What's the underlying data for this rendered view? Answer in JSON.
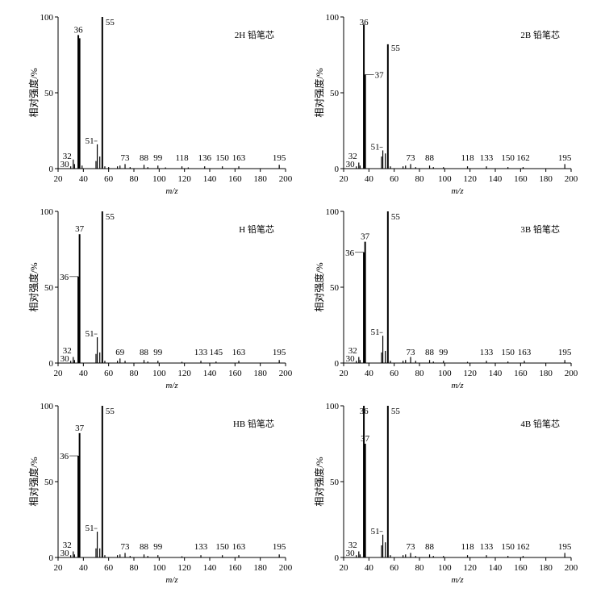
{
  "chart_data": [
    {
      "type": "bar",
      "title": "2H 铅笔芯",
      "xlabel": "m/z",
      "ylabel": "相对强度/%",
      "xlim": [
        20,
        200
      ],
      "ylim": [
        0,
        100
      ],
      "x_ticks": [
        "20",
        "40",
        "60",
        "80",
        "100",
        "120",
        "140",
        "160",
        "180",
        "200"
      ],
      "y_ticks": [
        "0",
        "50",
        "100"
      ],
      "peaks": [
        {
          "x": 30,
          "y": 1.5
        },
        {
          "x": 32,
          "y": 6
        },
        {
          "x": 33,
          "y": 3
        },
        {
          "x": 36,
          "y": 88
        },
        {
          "x": 37,
          "y": 86
        },
        {
          "x": 39,
          "y": 2
        },
        {
          "x": 50,
          "y": 5
        },
        {
          "x": 51,
          "y": 16
        },
        {
          "x": 53,
          "y": 8
        },
        {
          "x": 55,
          "y": 100
        },
        {
          "x": 57,
          "y": 1.5
        },
        {
          "x": 60,
          "y": 1
        },
        {
          "x": 67,
          "y": 1.5
        },
        {
          "x": 69,
          "y": 2
        },
        {
          "x": 73,
          "y": 3
        },
        {
          "x": 77,
          "y": 1
        },
        {
          "x": 88,
          "y": 2.5
        },
        {
          "x": 91,
          "y": 1
        },
        {
          "x": 99,
          "y": 2
        },
        {
          "x": 105,
          "y": 0.8
        },
        {
          "x": 118,
          "y": 1.5
        },
        {
          "x": 123,
          "y": 0.8
        },
        {
          "x": 136,
          "y": 1.5
        },
        {
          "x": 150,
          "y": 1.5
        },
        {
          "x": 163,
          "y": 1.5
        },
        {
          "x": 195,
          "y": 2.5
        }
      ],
      "labels": [
        {
          "text": "30",
          "x": 30,
          "y": 1.5
        },
        {
          "text": "32",
          "x": 32,
          "y": 6
        },
        {
          "text": "36",
          "x": 36,
          "y": 88
        },
        {
          "text": "51",
          "x": 51,
          "y": 16
        },
        {
          "text": "55",
          "x": 55,
          "y": 100
        },
        {
          "text": "73",
          "x": 73,
          "y": 3
        },
        {
          "text": "88",
          "x": 88,
          "y": 2.5
        },
        {
          "text": "99",
          "x": 99,
          "y": 2
        },
        {
          "text": "118",
          "x": 118,
          "y": 1.5
        },
        {
          "text": "136",
          "x": 136,
          "y": 1.5
        },
        {
          "text": "150",
          "x": 150,
          "y": 1.5
        },
        {
          "text": "163",
          "x": 163,
          "y": 1.5
        },
        {
          "text": "195",
          "x": 195,
          "y": 2.5
        }
      ]
    },
    {
      "type": "bar",
      "title": "2B 铅笔芯",
      "xlabel": "m/z",
      "ylabel": "相对强度/%",
      "xlim": [
        20,
        200
      ],
      "ylim": [
        0,
        100
      ],
      "x_ticks": [
        "20",
        "40",
        "60",
        "80",
        "100",
        "120",
        "140",
        "160",
        "180",
        "200"
      ],
      "y_ticks": [
        "0",
        "50",
        "100"
      ],
      "peaks": [
        {
          "x": 30,
          "y": 1.5
        },
        {
          "x": 32,
          "y": 4
        },
        {
          "x": 33,
          "y": 2
        },
        {
          "x": 36,
          "y": 95
        },
        {
          "x": 37,
          "y": 62
        },
        {
          "x": 50,
          "y": 8
        },
        {
          "x": 51,
          "y": 12
        },
        {
          "x": 53,
          "y": 10
        },
        {
          "x": 55,
          "y": 82
        },
        {
          "x": 57,
          "y": 1.5
        },
        {
          "x": 67,
          "y": 1.5
        },
        {
          "x": 69,
          "y": 2
        },
        {
          "x": 73,
          "y": 3
        },
        {
          "x": 77,
          "y": 1
        },
        {
          "x": 88,
          "y": 2
        },
        {
          "x": 91,
          "y": 1
        },
        {
          "x": 99,
          "y": 1
        },
        {
          "x": 118,
          "y": 1.5
        },
        {
          "x": 133,
          "y": 1.5
        },
        {
          "x": 150,
          "y": 1
        },
        {
          "x": 162,
          "y": 1
        },
        {
          "x": 195,
          "y": 3
        }
      ],
      "labels": [
        {
          "text": "30",
          "x": 30,
          "y": 1.5
        },
        {
          "text": "32",
          "x": 32,
          "y": 4
        },
        {
          "text": "36",
          "x": 36,
          "y": 95
        },
        {
          "text": "37",
          "x": 37,
          "y": 62
        },
        {
          "text": "51",
          "x": 51,
          "y": 12
        },
        {
          "text": "55",
          "x": 55,
          "y": 82
        },
        {
          "text": "73",
          "x": 73,
          "y": 3
        },
        {
          "text": "88",
          "x": 88,
          "y": 2
        },
        {
          "text": "118",
          "x": 118,
          "y": 1.5
        },
        {
          "text": "133",
          "x": 133,
          "y": 1.5
        },
        {
          "text": "150",
          "x": 150,
          "y": 1
        },
        {
          "text": "162",
          "x": 162,
          "y": 1
        },
        {
          "text": "195",
          "x": 195,
          "y": 3
        }
      ]
    },
    {
      "type": "bar",
      "title": "H 铅笔芯",
      "xlabel": "m/z",
      "ylabel": "相对强度/%",
      "xlim": [
        20,
        200
      ],
      "ylim": [
        0,
        100
      ],
      "x_ticks": [
        "20",
        "40",
        "60",
        "80",
        "100",
        "120",
        "140",
        "160",
        "180",
        "200"
      ],
      "y_ticks": [
        "0",
        "50",
        "100"
      ],
      "peaks": [
        {
          "x": 30,
          "y": 1.5
        },
        {
          "x": 32,
          "y": 4
        },
        {
          "x": 33,
          "y": 2
        },
        {
          "x": 36,
          "y": 57
        },
        {
          "x": 37,
          "y": 85
        },
        {
          "x": 50,
          "y": 6
        },
        {
          "x": 51,
          "y": 17
        },
        {
          "x": 53,
          "y": 7
        },
        {
          "x": 55,
          "y": 100
        },
        {
          "x": 57,
          "y": 1.5
        },
        {
          "x": 67,
          "y": 1.5
        },
        {
          "x": 69,
          "y": 3
        },
        {
          "x": 73,
          "y": 1.5
        },
        {
          "x": 88,
          "y": 2
        },
        {
          "x": 91,
          "y": 1
        },
        {
          "x": 99,
          "y": 1.5
        },
        {
          "x": 118,
          "y": 0.8
        },
        {
          "x": 133,
          "y": 1.5
        },
        {
          "x": 145,
          "y": 1
        },
        {
          "x": 163,
          "y": 1.5
        },
        {
          "x": 195,
          "y": 2
        }
      ],
      "labels": [
        {
          "text": "30",
          "x": 30,
          "y": 1.5
        },
        {
          "text": "32",
          "x": 32,
          "y": 4
        },
        {
          "text": "36",
          "x": 36,
          "y": 57
        },
        {
          "text": "37",
          "x": 37,
          "y": 85
        },
        {
          "text": "51",
          "x": 51,
          "y": 17
        },
        {
          "text": "55",
          "x": 55,
          "y": 100
        },
        {
          "text": "69",
          "x": 69,
          "y": 3
        },
        {
          "text": "88",
          "x": 88,
          "y": 2
        },
        {
          "text": "99",
          "x": 99,
          "y": 1.5
        },
        {
          "text": "133",
          "x": 133,
          "y": 1.5
        },
        {
          "text": "145",
          "x": 145,
          "y": 1
        },
        {
          "text": "163",
          "x": 163,
          "y": 1.5
        },
        {
          "text": "195",
          "x": 195,
          "y": 2
        }
      ]
    },
    {
      "type": "bar",
      "title": "3B 铅笔芯",
      "xlabel": "m/z",
      "ylabel": "相对强度/%",
      "xlim": [
        20,
        200
      ],
      "ylim": [
        0,
        100
      ],
      "x_ticks": [
        "20",
        "40",
        "60",
        "80",
        "100",
        "120",
        "140",
        "160",
        "180",
        "200"
      ],
      "y_ticks": [
        "0",
        "50",
        "100"
      ],
      "peaks": [
        {
          "x": 30,
          "y": 1.5
        },
        {
          "x": 32,
          "y": 4
        },
        {
          "x": 33,
          "y": 2
        },
        {
          "x": 36,
          "y": 73
        },
        {
          "x": 37,
          "y": 80
        },
        {
          "x": 50,
          "y": 7
        },
        {
          "x": 51,
          "y": 18
        },
        {
          "x": 53,
          "y": 8
        },
        {
          "x": 55,
          "y": 100
        },
        {
          "x": 57,
          "y": 1.5
        },
        {
          "x": 67,
          "y": 1.5
        },
        {
          "x": 69,
          "y": 2
        },
        {
          "x": 73,
          "y": 4
        },
        {
          "x": 77,
          "y": 1.5
        },
        {
          "x": 88,
          "y": 2
        },
        {
          "x": 91,
          "y": 1
        },
        {
          "x": 99,
          "y": 1.5
        },
        {
          "x": 118,
          "y": 0.8
        },
        {
          "x": 133,
          "y": 1.5
        },
        {
          "x": 150,
          "y": 1
        },
        {
          "x": 163,
          "y": 1.5
        },
        {
          "x": 195,
          "y": 2
        }
      ],
      "labels": [
        {
          "text": "30",
          "x": 30,
          "y": 1.5
        },
        {
          "text": "32",
          "x": 32,
          "y": 4
        },
        {
          "text": "36",
          "x": 36,
          "y": 73
        },
        {
          "text": "37",
          "x": 37,
          "y": 80
        },
        {
          "text": "51",
          "x": 51,
          "y": 18
        },
        {
          "text": "55",
          "x": 55,
          "y": 100
        },
        {
          "text": "73",
          "x": 73,
          "y": 4
        },
        {
          "text": "88",
          "x": 88,
          "y": 2
        },
        {
          "text": "99",
          "x": 99,
          "y": 1.5
        },
        {
          "text": "133",
          "x": 133,
          "y": 1.5
        },
        {
          "text": "150",
          "x": 150,
          "y": 1
        },
        {
          "text": "163",
          "x": 163,
          "y": 1.5
        },
        {
          "text": "195",
          "x": 195,
          "y": 2
        }
      ]
    },
    {
      "type": "bar",
      "title": "HB 铅笔芯",
      "xlabel": "m/z",
      "ylabel": "相对强度/%",
      "xlim": [
        20,
        200
      ],
      "ylim": [
        0,
        100
      ],
      "x_ticks": [
        "20",
        "40",
        "60",
        "80",
        "100",
        "120",
        "140",
        "160",
        "180",
        "200"
      ],
      "y_ticks": [
        "0",
        "50",
        "100"
      ],
      "peaks": [
        {
          "x": 30,
          "y": 1.5
        },
        {
          "x": 32,
          "y": 4
        },
        {
          "x": 33,
          "y": 2
        },
        {
          "x": 36,
          "y": 67
        },
        {
          "x": 37,
          "y": 82
        },
        {
          "x": 50,
          "y": 6
        },
        {
          "x": 51,
          "y": 17
        },
        {
          "x": 53,
          "y": 6
        },
        {
          "x": 55,
          "y": 100
        },
        {
          "x": 57,
          "y": 1.5
        },
        {
          "x": 67,
          "y": 1.5
        },
        {
          "x": 69,
          "y": 2
        },
        {
          "x": 73,
          "y": 3
        },
        {
          "x": 77,
          "y": 1
        },
        {
          "x": 88,
          "y": 2
        },
        {
          "x": 91,
          "y": 1
        },
        {
          "x": 99,
          "y": 1.5
        },
        {
          "x": 118,
          "y": 0.8
        },
        {
          "x": 133,
          "y": 1.5
        },
        {
          "x": 150,
          "y": 1.5
        },
        {
          "x": 163,
          "y": 1.5
        },
        {
          "x": 195,
          "y": 2
        }
      ],
      "labels": [
        {
          "text": "30",
          "x": 30,
          "y": 1.5
        },
        {
          "text": "32",
          "x": 32,
          "y": 4
        },
        {
          "text": "36",
          "x": 36,
          "y": 67
        },
        {
          "text": "37",
          "x": 37,
          "y": 82
        },
        {
          "text": "51",
          "x": 51,
          "y": 17
        },
        {
          "text": "55",
          "x": 55,
          "y": 100
        },
        {
          "text": "73",
          "x": 73,
          "y": 3
        },
        {
          "text": "88",
          "x": 88,
          "y": 2
        },
        {
          "text": "99",
          "x": 99,
          "y": 1.5
        },
        {
          "text": "133",
          "x": 133,
          "y": 1.5
        },
        {
          "text": "150",
          "x": 150,
          "y": 1.5
        },
        {
          "text": "163",
          "x": 163,
          "y": 1.5
        },
        {
          "text": "195",
          "x": 195,
          "y": 2
        }
      ]
    },
    {
      "type": "bar",
      "title": "4B 铅笔芯",
      "xlabel": "m/z",
      "ylabel": "相对强度/%",
      "xlim": [
        20,
        200
      ],
      "ylim": [
        0,
        100
      ],
      "x_ticks": [
        "20",
        "40",
        "60",
        "80",
        "100",
        "120",
        "140",
        "160",
        "180",
        "200"
      ],
      "y_ticks": [
        "0",
        "50",
        "100"
      ],
      "peaks": [
        {
          "x": 30,
          "y": 1.5
        },
        {
          "x": 32,
          "y": 4
        },
        {
          "x": 33,
          "y": 2
        },
        {
          "x": 36,
          "y": 100
        },
        {
          "x": 37,
          "y": 75
        },
        {
          "x": 50,
          "y": 8
        },
        {
          "x": 51,
          "y": 15
        },
        {
          "x": 53,
          "y": 10
        },
        {
          "x": 55,
          "y": 100
        },
        {
          "x": 57,
          "y": 1.5
        },
        {
          "x": 67,
          "y": 1.5
        },
        {
          "x": 69,
          "y": 2
        },
        {
          "x": 73,
          "y": 3
        },
        {
          "x": 77,
          "y": 1
        },
        {
          "x": 88,
          "y": 2
        },
        {
          "x": 91,
          "y": 1
        },
        {
          "x": 99,
          "y": 1
        },
        {
          "x": 118,
          "y": 1.5
        },
        {
          "x": 133,
          "y": 1.5
        },
        {
          "x": 150,
          "y": 1
        },
        {
          "x": 162,
          "y": 1
        },
        {
          "x": 195,
          "y": 3
        }
      ],
      "labels": [
        {
          "text": "30",
          "x": 30,
          "y": 1.5
        },
        {
          "text": "32",
          "x": 32,
          "y": 4
        },
        {
          "text": "36",
          "x": 36,
          "y": 100
        },
        {
          "text": "37",
          "x": 37,
          "y": 75
        },
        {
          "text": "51",
          "x": 51,
          "y": 15
        },
        {
          "text": "55",
          "x": 55,
          "y": 100
        },
        {
          "text": "73",
          "x": 73,
          "y": 3
        },
        {
          "text": "88",
          "x": 88,
          "y": 2
        },
        {
          "text": "118",
          "x": 118,
          "y": 1.5
        },
        {
          "text": "133",
          "x": 133,
          "y": 1.5
        },
        {
          "text": "150",
          "x": 150,
          "y": 1
        },
        {
          "text": "162",
          "x": 162,
          "y": 1
        },
        {
          "text": "195",
          "x": 195,
          "y": 3
        }
      ]
    }
  ]
}
